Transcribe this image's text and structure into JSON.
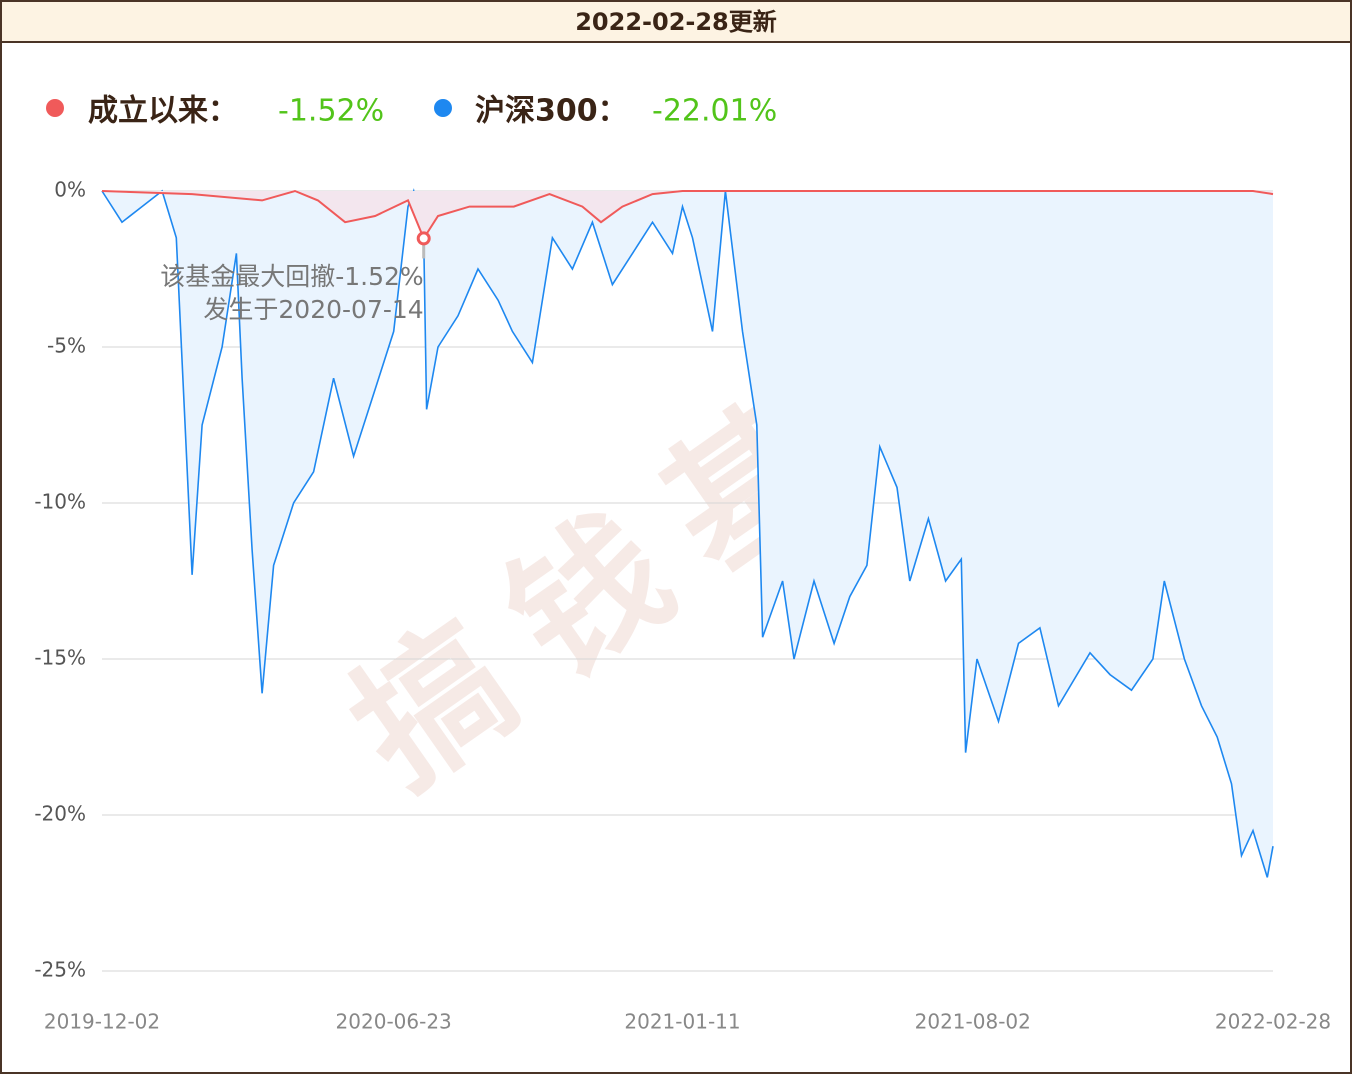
{
  "header": {
    "title": "2022-02-28更新"
  },
  "chart_data": {
    "type": "drawdown",
    "watermark": "搞钱基地",
    "xlim": [
      "2019-12-02",
      "2022-02-28"
    ],
    "xticks": [
      "2019-12-02",
      "2020-06-23",
      "2021-01-11",
      "2021-08-02",
      "2022-02-28"
    ],
    "ylim": [
      -25,
      0
    ],
    "yticks": [
      {
        "value": 0,
        "label": "0%"
      },
      {
        "value": -5,
        "label": "-5%"
      },
      {
        "value": -10,
        "label": "-10%"
      },
      {
        "value": -15,
        "label": "-15%"
      },
      {
        "value": -20,
        "label": "-20%"
      },
      {
        "value": -25,
        "label": "-25%"
      }
    ],
    "grid": true,
    "series": [
      {
        "name": "成立以来：",
        "color": "#f05a5a",
        "fill": "#f3e6ee",
        "total": {
          "value": -1.52,
          "label": "-1.52%"
        },
        "x": [
          "2019-12-02",
          "2020-02-03",
          "2020-03-23",
          "2020-04-15",
          "2020-05-01",
          "2020-05-20",
          "2020-06-10",
          "2020-07-03",
          "2020-07-14",
          "2020-07-24",
          "2020-08-15",
          "2020-09-15",
          "2020-10-10",
          "2020-11-02",
          "2020-11-15",
          "2020-11-30",
          "2020-12-21",
          "2021-01-11",
          "2022-02-14",
          "2022-02-28"
        ],
        "values": [
          0,
          -0.1,
          -0.3,
          0,
          -0.3,
          -1.0,
          -0.8,
          -0.3,
          -1.52,
          -0.8,
          -0.5,
          -0.5,
          -0.1,
          -0.5,
          -1.0,
          -0.5,
          -0.1,
          0,
          0,
          -0.1
        ]
      },
      {
        "name": "沪深300：",
        "color": "#1e88f0",
        "fill": "#eaf4fe",
        "total": {
          "value": -22.01,
          "label": "-22.01%"
        },
        "x": [
          "2019-12-02",
          "2019-12-16",
          "2019-12-30",
          "2020-01-13",
          "2020-01-23",
          "2020-02-03",
          "2020-02-10",
          "2020-02-24",
          "2020-03-05",
          "2020-03-09",
          "2020-03-16",
          "2020-03-23",
          "2020-03-31",
          "2020-04-14",
          "2020-04-28",
          "2020-05-12",
          "2020-05-26",
          "2020-06-09",
          "2020-06-23",
          "2020-07-03",
          "2020-07-07",
          "2020-07-14",
          "2020-07-16",
          "2020-07-24",
          "2020-08-07",
          "2020-08-21",
          "2020-09-04",
          "2020-09-14",
          "2020-09-28",
          "2020-10-12",
          "2020-10-26",
          "2020-11-09",
          "2020-11-23",
          "2020-12-07",
          "2020-12-21",
          "2021-01-04",
          "2021-01-11",
          "2021-01-18",
          "2021-02-01",
          "2021-02-10",
          "2021-02-22",
          "2021-03-04",
          "2021-03-08",
          "2021-03-22",
          "2021-03-30",
          "2021-04-13",
          "2021-04-27",
          "2021-05-08",
          "2021-05-20",
          "2021-05-29",
          "2021-06-10",
          "2021-06-19",
          "2021-07-02",
          "2021-07-14",
          "2021-07-25",
          "2021-07-28",
          "2021-08-05",
          "2021-08-20",
          "2021-09-03",
          "2021-09-18",
          "2021-10-01",
          "2021-10-23",
          "2021-11-06",
          "2021-11-21",
          "2021-12-06",
          "2021-12-14",
          "2021-12-28",
          "2022-01-09",
          "2022-01-20",
          "2022-01-30",
          "2022-02-06",
          "2022-02-14",
          "2022-02-24",
          "2022-02-28"
        ],
        "values": [
          0,
          -1.0,
          -0.5,
          0,
          -1.5,
          -12.3,
          -7.5,
          -5.0,
          -2.0,
          -6.0,
          -11.5,
          -16.1,
          -12.0,
          -10.0,
          -9.0,
          -6.0,
          -8.5,
          -6.5,
          -4.5,
          -0.5,
          0,
          -1.5,
          -7.0,
          -5.0,
          -4.0,
          -2.5,
          -3.5,
          -4.5,
          -5.5,
          -1.5,
          -2.5,
          -1.0,
          -3.0,
          -2.0,
          -1.0,
          -2.0,
          -0.5,
          -1.5,
          -4.5,
          0,
          -4.5,
          -7.5,
          -14.3,
          -12.5,
          -15.0,
          -12.5,
          -14.5,
          -13.0,
          -12.0,
          -8.2,
          -9.5,
          -12.5,
          -10.5,
          -12.5,
          -11.8,
          -18.0,
          -15.0,
          -17.0,
          -14.5,
          -14.0,
          -16.5,
          -14.8,
          -15.5,
          -16.0,
          -15.0,
          -12.5,
          -15.0,
          -16.5,
          -17.5,
          -19.0,
          -21.3,
          -20.5,
          -22.0,
          -21.0
        ]
      }
    ],
    "annotation": {
      "x": "2020-07-14",
      "value": -1.52,
      "lines": [
        "该基金最大回撤-1.52%",
        "发生于2020-07-14"
      ]
    }
  }
}
